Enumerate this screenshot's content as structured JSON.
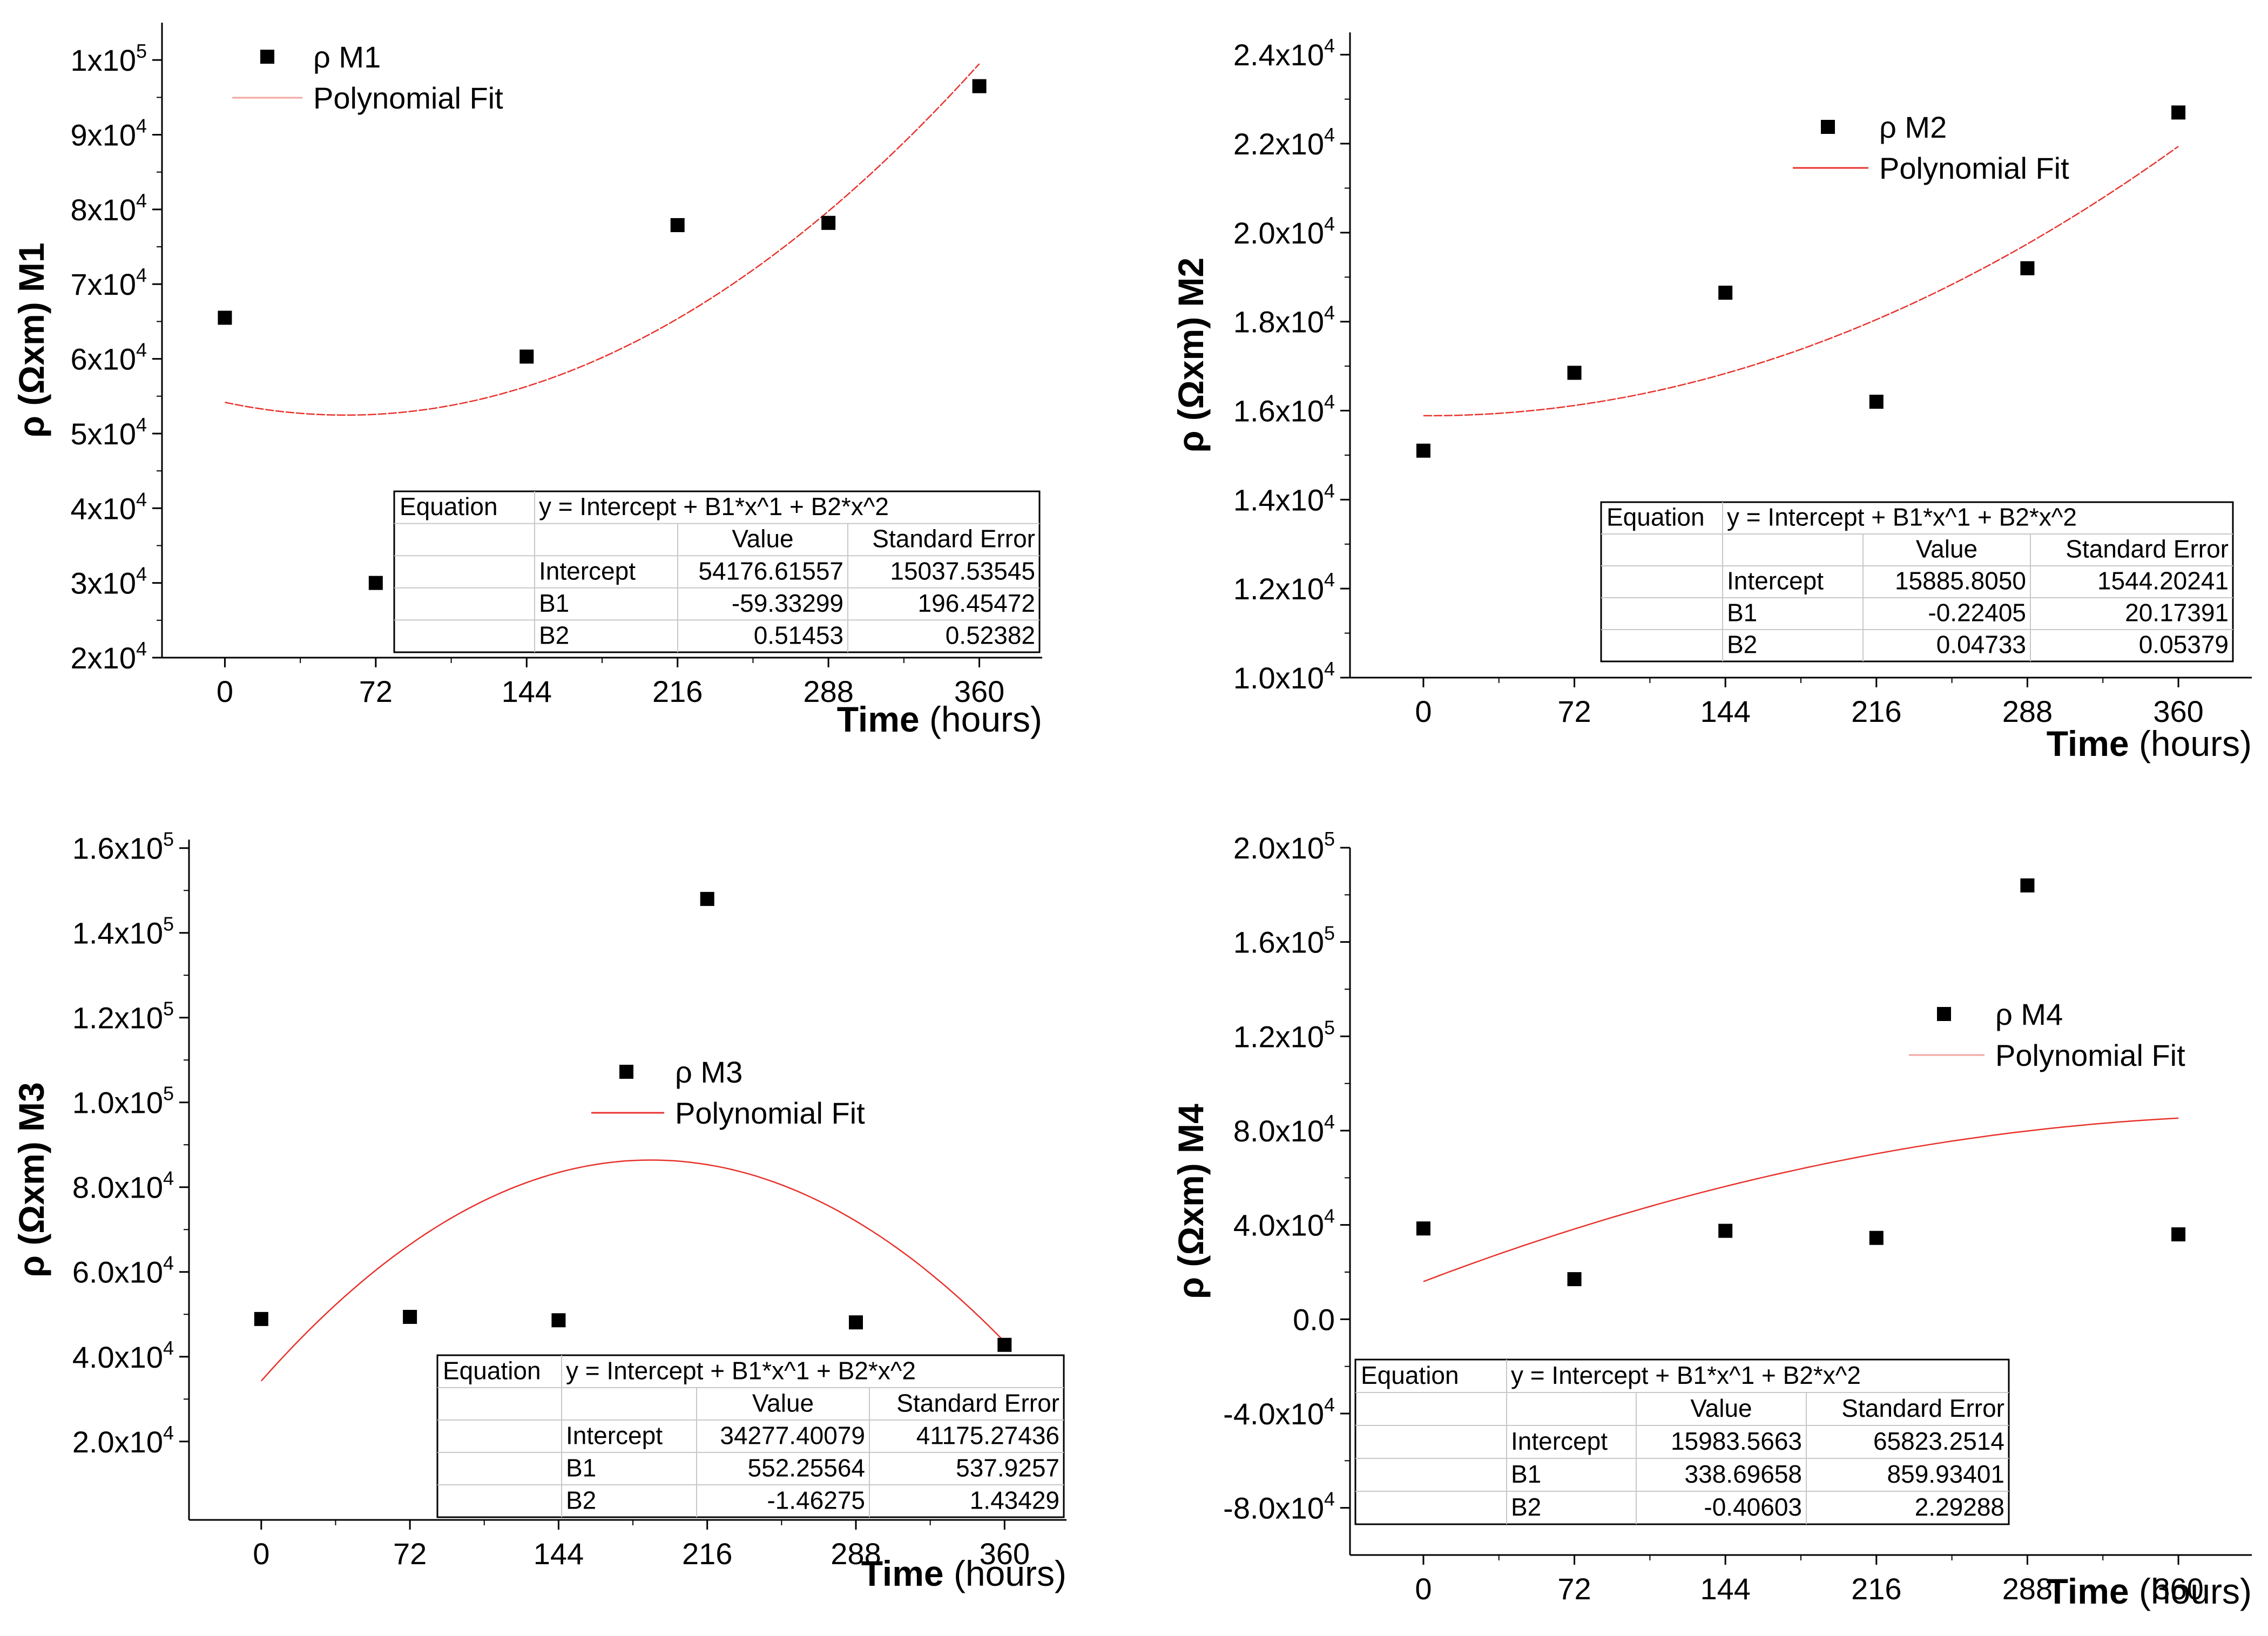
{
  "chart_data": [
    {
      "type": "scatter",
      "series": [
        {
          "name": "ρ M1",
          "kind": "scatter",
          "x": [
            0,
            72,
            144,
            216,
            288,
            360
          ],
          "y": [
            65500,
            30000,
            60300,
            77900,
            78200,
            96500
          ]
        },
        {
          "name": "Polynomial Fit",
          "kind": "line",
          "intercept": 54176.61557,
          "b1": -59.33299,
          "b2": 0.51453
        }
      ],
      "xlabel": "Time",
      "xlabel_unit": "(hours)",
      "ylabel": "ρ (Ωxm) M1",
      "xticks": [
        0,
        72,
        144,
        216,
        288,
        360
      ],
      "yticks": [
        20000,
        30000,
        40000,
        50000,
        60000,
        70000,
        80000,
        90000,
        100000
      ],
      "ytick_labels": [
        {
          "m": "2x10",
          "e": "4"
        },
        {
          "m": "3x10",
          "e": "4"
        },
        {
          "m": "4x10",
          "e": "4"
        },
        {
          "m": "5x10",
          "e": "4"
        },
        {
          "m": "6x10",
          "e": "4"
        },
        {
          "m": "7x10",
          "e": "4"
        },
        {
          "m": "8x10",
          "e": "4"
        },
        {
          "m": "9x10",
          "e": "4"
        },
        {
          "m": "1x10",
          "e": "5"
        }
      ],
      "xlim": [
        -30,
        390
      ],
      "ylim": [
        20000,
        105000
      ],
      "legend": [
        "ρ M1",
        "Polynomial Fit"
      ],
      "fit_table": {
        "equation_label": "Equation",
        "equation": "y = Intercept + B1*x^1 + B2*x^2",
        "headers": [
          "Value",
          "Standard Error"
        ],
        "rows": [
          [
            "Intercept",
            "54176.61557",
            "15037.53545"
          ],
          [
            "B1",
            "-59.33299",
            "196.45472"
          ],
          [
            "B2",
            "0.51453",
            "0.52382"
          ]
        ]
      }
    },
    {
      "type": "scatter",
      "series": [
        {
          "name": "ρ M2",
          "kind": "scatter",
          "x": [
            0,
            72,
            144,
            216,
            288,
            360
          ],
          "y": [
            15100,
            16850,
            18650,
            16200,
            19200,
            22700
          ]
        },
        {
          "name": "Polynomial Fit",
          "kind": "line",
          "intercept": 15885.805,
          "b1": -0.22405,
          "b2": 0.04733
        }
      ],
      "xlabel": "Time",
      "xlabel_unit": "(hours)",
      "ylabel": "ρ (Ωxm) M2",
      "xticks": [
        0,
        72,
        144,
        216,
        288,
        360
      ],
      "yticks": [
        10000,
        12000,
        14000,
        16000,
        18000,
        20000,
        22000,
        24000
      ],
      "ytick_labels": [
        {
          "m": "1.0x10",
          "e": "4"
        },
        {
          "m": "1.2x10",
          "e": "4"
        },
        {
          "m": "1.4x10",
          "e": "4"
        },
        {
          "m": "1.6x10",
          "e": "4"
        },
        {
          "m": "1.8x10",
          "e": "4"
        },
        {
          "m": "2.0x10",
          "e": "4"
        },
        {
          "m": "2.2x10",
          "e": "4"
        },
        {
          "m": "2.4x10",
          "e": "4"
        }
      ],
      "xlim": [
        -35,
        395
      ],
      "ylim": [
        10000,
        24500
      ],
      "legend": [
        "ρ M2",
        "Polynomial Fit"
      ],
      "fit_table": {
        "equation_label": "Equation",
        "equation": "y = Intercept + B1*x^1 + B2*x^2",
        "headers": [
          "Value",
          "Standard Error"
        ],
        "rows": [
          [
            "Intercept",
            "15885.8050",
            "1544.20241"
          ],
          [
            "B1",
            "-0.22405",
            "20.17391"
          ],
          [
            "B2",
            "0.04733",
            "0.05379"
          ]
        ]
      }
    },
    {
      "type": "scatter",
      "series": [
        {
          "name": "ρ M3",
          "kind": "scatter",
          "x": [
            0,
            72,
            144,
            216,
            288,
            360
          ],
          "y": [
            48900,
            49400,
            48600,
            148000,
            48100,
            42800
          ]
        },
        {
          "name": "Polynomial Fit",
          "kind": "line",
          "intercept": 34277.40079,
          "b1": 552.25564,
          "b2": -1.46275
        }
      ],
      "xlabel": "Time",
      "xlabel_unit": "(hours)",
      "ylabel": "ρ (Ωxm) M3",
      "xticks": [
        0,
        72,
        144,
        216,
        288,
        360
      ],
      "yticks": [
        20000,
        40000,
        60000,
        80000,
        100000,
        120000,
        140000,
        160000
      ],
      "ytick_labels": [
        {
          "m": "2.0x10",
          "e": "4"
        },
        {
          "m": "4.0x10",
          "e": "4"
        },
        {
          "m": "6.0x10",
          "e": "4"
        },
        {
          "m": "8.0x10",
          "e": "4"
        },
        {
          "m": "1.0x10",
          "e": "5"
        },
        {
          "m": "1.2x10",
          "e": "5"
        },
        {
          "m": "1.4x10",
          "e": "5"
        },
        {
          "m": "1.6x10",
          "e": "5"
        }
      ],
      "xlim": [
        -35,
        390
      ],
      "ylim": [
        1500,
        162000
      ],
      "legend": [
        "ρ M3",
        "Polynomial Fit"
      ],
      "fit_table": {
        "equation_label": "Equation",
        "equation": "y = Intercept + B1*x^1 + B2*x^2",
        "headers": [
          "Value",
          "Standard Error"
        ],
        "rows": [
          [
            "Intercept",
            "34277.40079",
            "41175.27436"
          ],
          [
            "B1",
            "552.25564",
            "537.9257"
          ],
          [
            "B2",
            "-1.46275",
            "1.43429"
          ]
        ]
      }
    },
    {
      "type": "scatter",
      "series": [
        {
          "name": "ρ M4",
          "kind": "scatter",
          "x": [
            0,
            72,
            144,
            216,
            288,
            360
          ],
          "y": [
            38500,
            17000,
            37500,
            34500,
            184000,
            36000
          ]
        },
        {
          "name": "Polynomial Fit",
          "kind": "line",
          "intercept": 15983.5663,
          "b1": 338.69658,
          "b2": -0.40603
        }
      ],
      "xlabel": "Time",
      "xlabel_unit": "(hours)",
      "ylabel": "ρ (Ωxm) M4",
      "xticks": [
        0,
        72,
        144,
        216,
        288,
        360
      ],
      "yticks": [
        -80000,
        -40000,
        0,
        40000,
        80000,
        120000,
        160000,
        200000
      ],
      "ytick_labels": [
        {
          "m": "-8.0x10",
          "e": "4"
        },
        {
          "m": "-4.0x10",
          "e": "4"
        },
        {
          "m": "0.0",
          "e": ""
        },
        {
          "m": "4.0x10",
          "e": "4"
        },
        {
          "m": "8.0x10",
          "e": "4"
        },
        {
          "m": "1.2x10",
          "e": "5"
        },
        {
          "m": "1.6x10",
          "e": "5"
        },
        {
          "m": "2.0x10",
          "e": "5"
        }
      ],
      "xlim": [
        -35,
        395
      ],
      "ylim": [
        -100000,
        200000
      ],
      "legend": [
        "ρ M4",
        "Polynomial Fit"
      ],
      "fit_table": {
        "equation_label": "Equation",
        "equation": "y = Intercept + B1*x^1 + B2*x^2",
        "headers": [
          "Value",
          "Standard Error"
        ],
        "rows": [
          [
            "Intercept",
            "15983.5663",
            "65823.2514"
          ],
          [
            "B1",
            "338.69658",
            "859.93401"
          ],
          [
            "B2",
            "-0.40603",
            "2.29288"
          ]
        ]
      }
    }
  ],
  "colors": {
    "fit_line": "#e8322c",
    "fit_line_faint": "#f2a5a0",
    "marker": "#000000",
    "axis": "#000000",
    "table_grid": "#c8c8c8"
  }
}
